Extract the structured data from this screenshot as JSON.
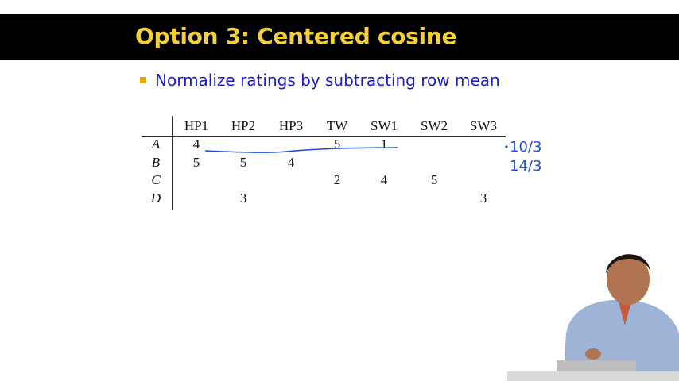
{
  "slide": {
    "title": "Option 3: Centered cosine",
    "bullet": "Normalize ratings by subtracting row mean"
  },
  "table": {
    "columns": [
      "HP1",
      "HP2",
      "HP3",
      "TW",
      "SW1",
      "SW2",
      "SW3"
    ],
    "rows": [
      {
        "label": "A",
        "cells": [
          "4",
          "",
          "",
          "5",
          "1",
          "",
          ""
        ]
      },
      {
        "label": "B",
        "cells": [
          "5",
          "5",
          "4",
          "",
          "",
          "",
          ""
        ]
      },
      {
        "label": "C",
        "cells": [
          "",
          "",
          "",
          "2",
          "4",
          "5",
          ""
        ]
      },
      {
        "label": "D",
        "cells": [
          "",
          "3",
          "",
          "",
          "",
          "",
          "3"
        ]
      }
    ]
  },
  "annotations": {
    "note_a": "10/3",
    "note_b": "14/3"
  },
  "colors": {
    "title_bar": "#000000",
    "title_text": "#f3cf3a",
    "bullet_text": "#1a1acc",
    "bullet_marker": "#e5a800",
    "ink": "#1f4fd6"
  }
}
